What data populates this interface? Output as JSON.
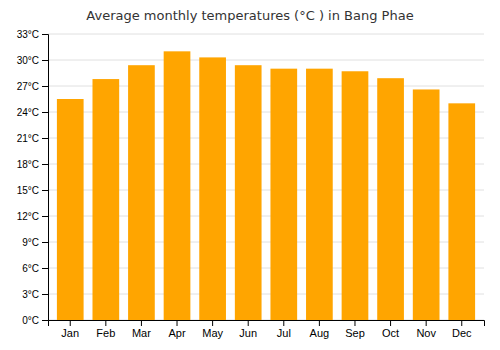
{
  "chart_data": {
    "type": "bar",
    "title": "Average monthly temperatures (°C ) in Bang Phae",
    "categories": [
      "Jan",
      "Feb",
      "Mar",
      "Apr",
      "May",
      "Jun",
      "Jul",
      "Aug",
      "Sep",
      "Oct",
      "Nov",
      "Dec"
    ],
    "values": [
      25.5,
      27.8,
      29.4,
      31.0,
      30.3,
      29.4,
      29.0,
      29.0,
      28.7,
      27.9,
      26.6,
      25.0
    ],
    "color": "#FFA500",
    "ylim": [
      0,
      33
    ],
    "yticks": [
      {
        "value": 0,
        "label": "0°C"
      },
      {
        "value": 3,
        "label": "3°C"
      },
      {
        "value": 6,
        "label": "6°C"
      },
      {
        "value": 9,
        "label": "9°C"
      },
      {
        "value": 12,
        "label": "12°C"
      },
      {
        "value": 15,
        "label": "15°C"
      },
      {
        "value": 18,
        "label": "18°C"
      },
      {
        "value": 21,
        "label": "21°C"
      },
      {
        "value": 24,
        "label": "24°C"
      },
      {
        "value": 27,
        "label": "27°C"
      },
      {
        "value": 30,
        "label": "30°C"
      },
      {
        "value": 33,
        "label": "33°C"
      }
    ],
    "grid": true
  }
}
